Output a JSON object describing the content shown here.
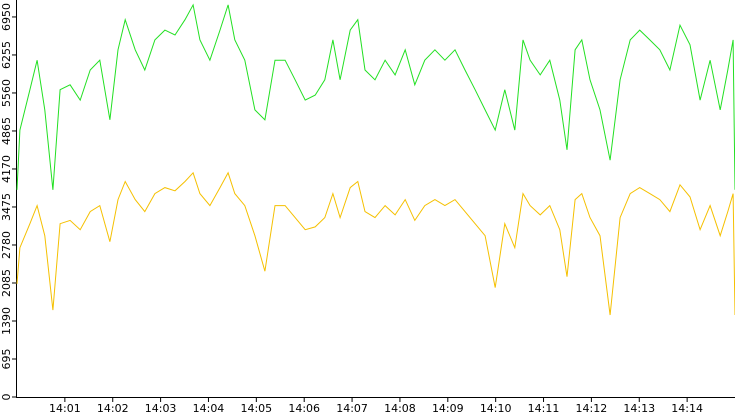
{
  "chart_data": {
    "type": "line",
    "x": [
      0,
      0.06,
      0.27,
      0.42,
      0.58,
      0.75,
      0.9,
      1.11,
      1.32,
      1.53,
      1.73,
      1.94,
      2.11,
      2.26,
      2.47,
      2.67,
      2.88,
      3.09,
      3.3,
      3.51,
      3.68,
      3.82,
      4.03,
      4.24,
      4.41,
      4.55,
      4.76,
      4.97,
      5.18,
      5.39,
      5.6,
      5.81,
      6.02,
      6.23,
      6.43,
      6.6,
      6.75,
      6.96,
      7.12,
      7.27,
      7.48,
      7.69,
      7.9,
      8.11,
      8.31,
      8.52,
      8.73,
      8.94,
      9.15,
      9.36,
      9.57,
      9.78,
      9.99,
      10.19,
      10.4,
      10.57,
      10.72,
      10.93,
      11.13,
      11.34,
      11.49,
      11.66,
      11.8,
      11.97,
      12.18,
      12.39,
      12.6,
      12.81,
      13.01,
      13.22,
      13.43,
      13.64,
      13.85,
      14.06,
      14.27,
      14.48,
      14.69,
      14.85,
      14.96,
      15
    ],
    "series": [
      {
        "color": "#22e022",
        "values": [
          3790,
          4880,
          5620,
          6160,
          5250,
          3790,
          5620,
          5710,
          5430,
          5980,
          6160,
          5070,
          6350,
          6900,
          6350,
          5980,
          6530,
          6710,
          6620,
          6900,
          7170,
          6530,
          6160,
          6710,
          7170,
          6530,
          6160,
          5250,
          5070,
          6160,
          6160,
          5800,
          5430,
          5520,
          5800,
          6530,
          5800,
          6710,
          6900,
          5980,
          5800,
          6160,
          5890,
          6350,
          5710,
          6160,
          6350,
          6160,
          6350,
          5980,
          5620,
          5250,
          4880,
          5620,
          4880,
          6530,
          6160,
          5890,
          6160,
          5430,
          4520,
          6350,
          6530,
          5800,
          5250,
          4330,
          5800,
          6530,
          6710,
          6530,
          6350,
          5980,
          6800,
          6440,
          5430,
          6160,
          5250,
          5980,
          6530,
          3790
        ]
      },
      {
        "color": "#f5c000",
        "values": [
          2070,
          2730,
          3170,
          3500,
          2950,
          1590,
          3170,
          3230,
          3060,
          3390,
          3500,
          2840,
          3610,
          3940,
          3610,
          3390,
          3720,
          3830,
          3770,
          3940,
          4100,
          3720,
          3500,
          3830,
          4100,
          3720,
          3500,
          2950,
          2300,
          3500,
          3500,
          3280,
          3060,
          3110,
          3280,
          3720,
          3280,
          3830,
          3940,
          3390,
          3280,
          3500,
          3330,
          3610,
          3230,
          3500,
          3610,
          3500,
          3610,
          3390,
          3170,
          2950,
          2000,
          3170,
          2730,
          3720,
          3500,
          3330,
          3500,
          3060,
          2200,
          3610,
          3720,
          3280,
          2950,
          1500,
          3280,
          3720,
          3830,
          3720,
          3610,
          3390,
          3880,
          3660,
          3060,
          3500,
          2950,
          3390,
          3720,
          1500
        ]
      }
    ],
    "xlim": [
      0,
      15
    ],
    "xticks": [
      {
        "value": 1,
        "label": "14:01"
      },
      {
        "value": 2,
        "label": "14:02"
      },
      {
        "value": 3,
        "label": "14:03"
      },
      {
        "value": 4,
        "label": "14:04"
      },
      {
        "value": 5,
        "label": "14:05"
      },
      {
        "value": 6,
        "label": "14:06"
      },
      {
        "value": 7,
        "label": "14:07"
      },
      {
        "value": 8,
        "label": "14:08"
      },
      {
        "value": 9,
        "label": "14:09"
      },
      {
        "value": 10,
        "label": "14:10"
      },
      {
        "value": 11,
        "label": "14:11"
      },
      {
        "value": 12,
        "label": "14:12"
      },
      {
        "value": 13,
        "label": "14:13"
      },
      {
        "value": 14,
        "label": "14:14"
      }
    ],
    "ylim": [
      0,
      7260
    ],
    "yticks": [
      0,
      695,
      1390,
      2085,
      2780,
      3475,
      4170,
      4865,
      5560,
      6255,
      6950
    ]
  }
}
